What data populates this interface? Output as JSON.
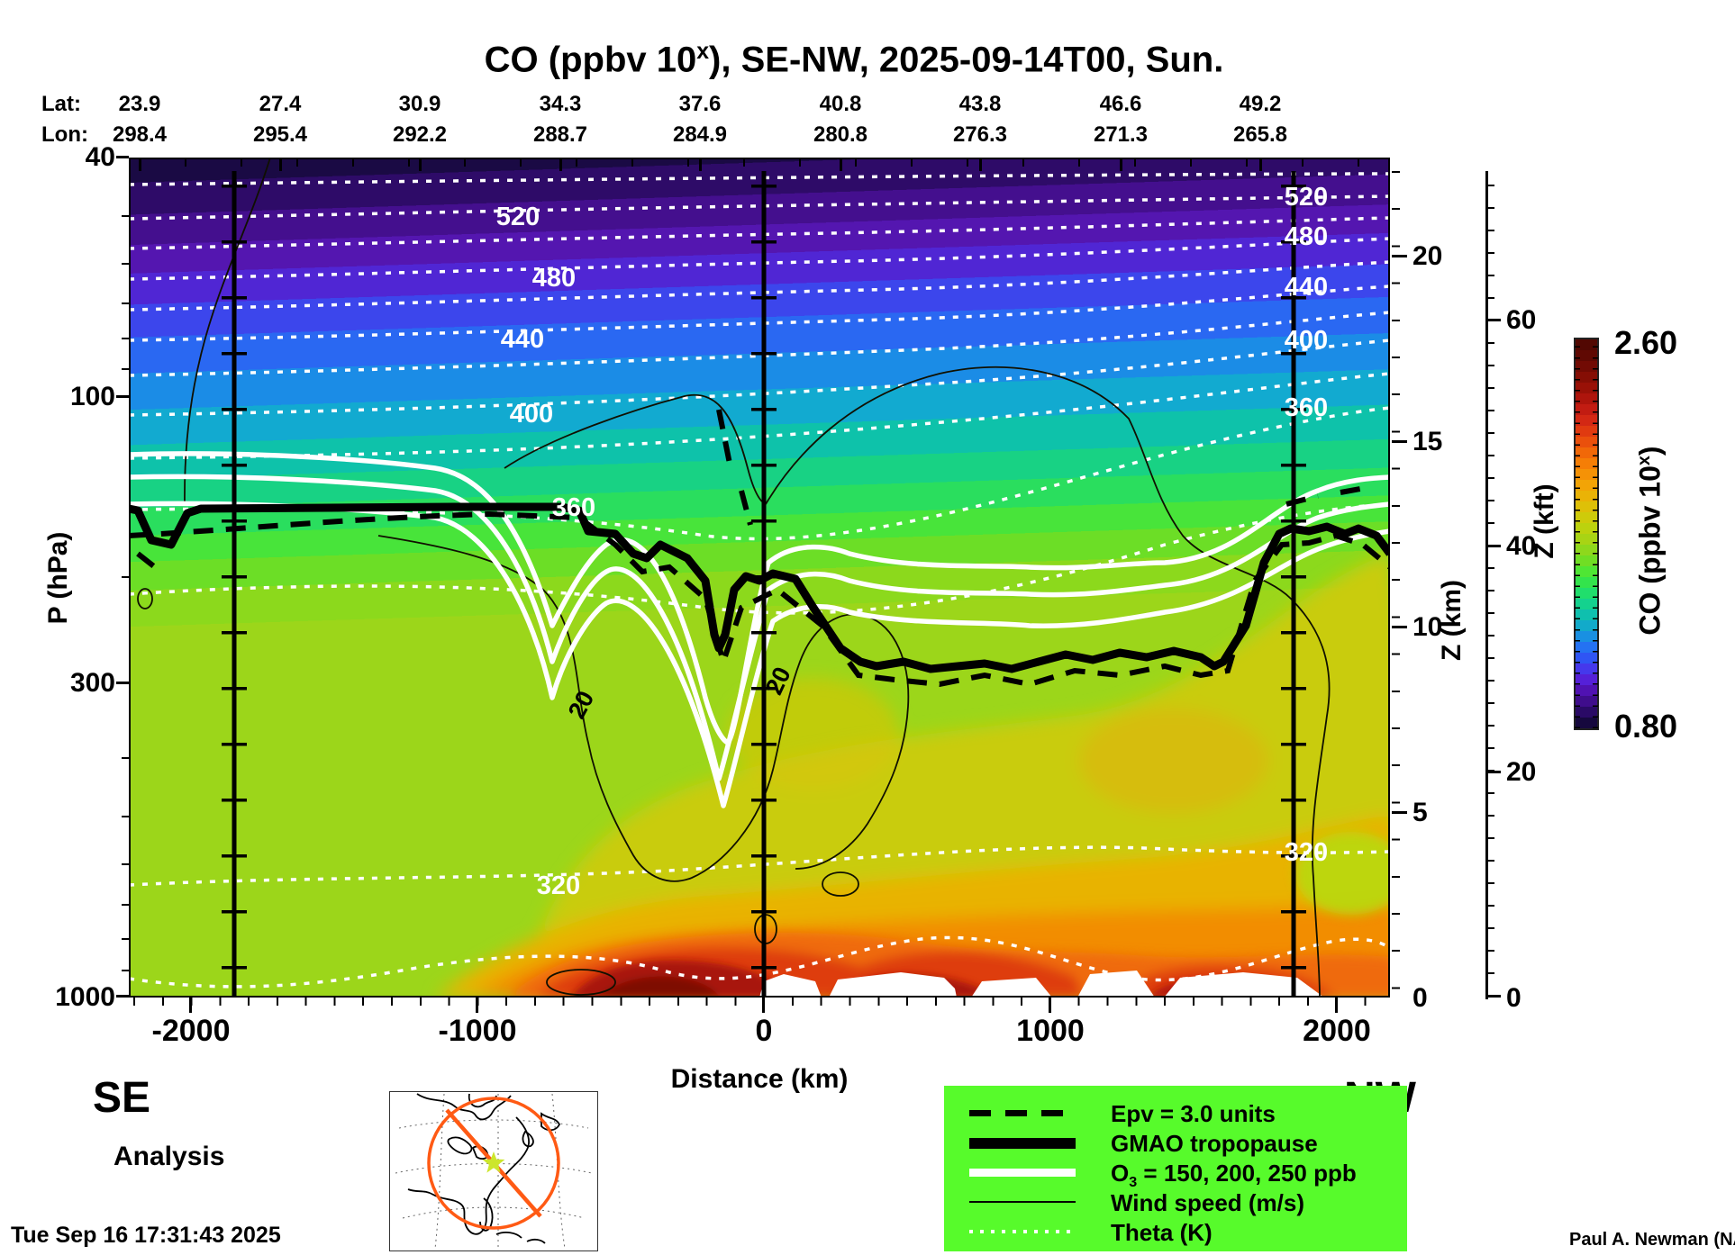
{
  "title": {
    "pre": "CO (ppbv 10",
    "sup": "x",
    "post": "), SE-NW, 2025-09-14T00, Sun."
  },
  "top_axis": {
    "lat_label": "Lat:",
    "lon_label": "Lon:",
    "lats": [
      "23.9",
      "27.4",
      "30.9",
      "34.3",
      "37.6",
      "40.8",
      "43.8",
      "46.6",
      "49.2"
    ],
    "lons": [
      "298.4",
      "295.4",
      "292.2",
      "288.7",
      "284.9",
      "280.8",
      "276.3",
      "271.3",
      "265.8"
    ]
  },
  "left_axis": {
    "label": "P (hPa)",
    "ticks": [
      "40",
      "100",
      "300",
      "1000"
    ]
  },
  "bottom_axis": {
    "label": "Distance (km)",
    "ticks": [
      "-2000",
      "-1000",
      "0",
      "1000",
      "2000"
    ]
  },
  "right_axis_km": {
    "label": "Z (km)",
    "ticks": [
      "20",
      "15",
      "10",
      "5",
      "0"
    ]
  },
  "right_axis_kft": {
    "label": "Z (kft)",
    "ticks": [
      "60",
      "40",
      "20",
      "0"
    ]
  },
  "colorbar": {
    "max": "2.60",
    "min": "0.80",
    "label_pre": "CO (ppbv 10",
    "label_sup": "x",
    "label_post": ")",
    "colors": [
      "#16083E",
      "#2A0A66",
      "#3F0D8C",
      "#5012B2",
      "#5520D8",
      "#4538EC",
      "#2F55F4",
      "#2472F2",
      "#1990E2",
      "#12AACA",
      "#0FC0AE",
      "#14D28E",
      "#20DE6C",
      "#33E44C",
      "#4FE634",
      "#70DE24",
      "#8ED81C",
      "#A8D414",
      "#BCD20E",
      "#CECB0A",
      "#DEC008",
      "#EAB306",
      "#F2A406",
      "#F59206",
      "#F57E06",
      "#F16808",
      "#EA500C",
      "#E03A10",
      "#D32814",
      "#C21C12",
      "#AE150C",
      "#991107",
      "#850E05",
      "#720B04",
      "#600903",
      "#520802"
    ]
  },
  "corners": {
    "se": "SE",
    "nw": "NW"
  },
  "annotations": {
    "analysis": "Analysis",
    "timestamp": "Tue Sep 16 17:31:43 2025",
    "credit": "Paul A. Newman (NASA"
  },
  "legend": {
    "background": "#57FB2B",
    "items": [
      {
        "style": "dashed-black",
        "label": "Epv = 3.0 units"
      },
      {
        "style": "thick-black",
        "label": "GMAO tropopause"
      },
      {
        "style": "thick-white",
        "label_pre": "O",
        "label_sub": "3",
        "label_post": " = 150, 200, 250 ppb"
      },
      {
        "style": "thin-black",
        "label": "Wind speed (m/s)"
      },
      {
        "style": "dotted-white",
        "label": "Theta (K)"
      }
    ]
  },
  "inset_map": {
    "circle_color": "#FF5A14",
    "line_color": "#FF5A14",
    "star_color": "#CCE62C"
  },
  "chart_data": {
    "type": "heatmap",
    "title": "CO (ppbv 10^x), SE-NW, 2025-09-14T00, Sun.",
    "x_axis": {
      "label": "Distance (km)",
      "range_km": [
        -2215,
        2185
      ],
      "ticks": [
        -2000,
        -1000,
        0,
        1000,
        2000
      ],
      "minor_tick_step_km": 100
    },
    "y_axis": {
      "label": "P (hPa)",
      "scale": "log",
      "range_hPa": [
        40,
        1000
      ],
      "ticks": [
        40,
        100,
        300,
        1000
      ]
    },
    "secondary_y_km": {
      "label": "Z (km)",
      "ticks": [
        20,
        15,
        10,
        5,
        0
      ]
    },
    "secondary_y_kft": {
      "label": "Z (kft)",
      "ticks": [
        60,
        40,
        20,
        0
      ]
    },
    "colorbar": {
      "label": "CO (ppbv 10^x)",
      "min": 0.8,
      "max": 2.6,
      "n_steps": 36
    },
    "theta_contours_K": {
      "interval": 20,
      "range": [
        300,
        540
      ],
      "labeled": [
        520,
        480,
        440,
        400,
        360,
        320
      ]
    },
    "ozone_contours_ppb": [
      150,
      200,
      250
    ],
    "epv_contour_units": 3.0,
    "wind_speed_label_ms": 20,
    "section_marker_lines_km": [
      -1850,
      0,
      1850
    ],
    "tropopause_approx_km_hPa": [
      [
        -2215,
        155
      ],
      [
        -1850,
        160
      ],
      [
        -1200,
        153
      ],
      [
        -600,
        162
      ],
      [
        -300,
        215
      ],
      [
        -150,
        252
      ],
      [
        50,
        232
      ],
      [
        250,
        282
      ],
      [
        500,
        272
      ],
      [
        900,
        278
      ],
      [
        1300,
        268
      ],
      [
        1600,
        276
      ],
      [
        1850,
        172
      ],
      [
        2185,
        192
      ]
    ],
    "field_summary": "CO near 0.8-1.0 in upper stratosphere (dark purple/blue), 1.6-1.8 in mid troposphere (green/yellow), maxima up to 2.6 near the surface between about -500 and +1500 km (orange to dark red)"
  }
}
